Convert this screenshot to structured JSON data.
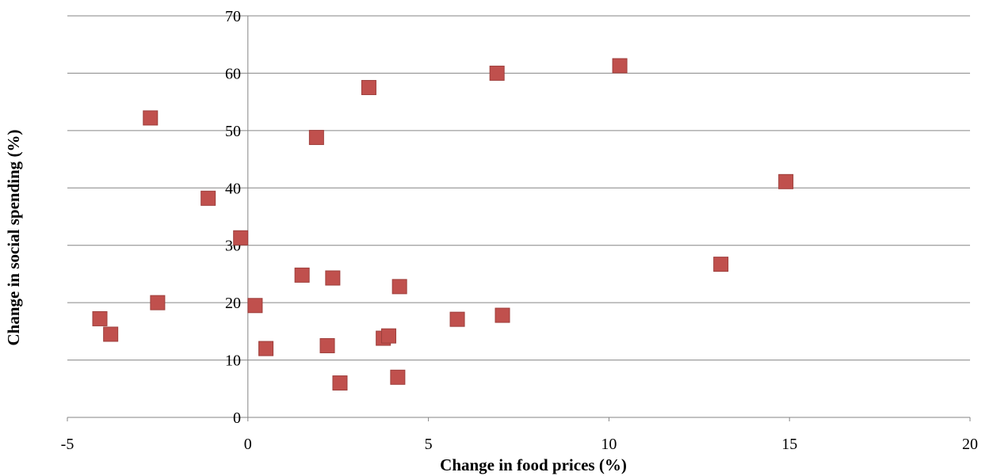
{
  "colors": {
    "marker": "#C0504D",
    "marker_edge": "#9E3F3C",
    "grid": "#868686",
    "axis": "#868686"
  },
  "chart_data": {
    "type": "scatter",
    "title": "",
    "xlabel": "Change in food prices (%)",
    "ylabel": "Change in social spending (%)",
    "xlim": [
      -5,
      20
    ],
    "ylim": [
      0,
      70
    ],
    "xticks": [
      -5,
      0,
      5,
      10,
      15,
      20
    ],
    "yticks": [
      0,
      10,
      20,
      30,
      40,
      50,
      60,
      70
    ],
    "grid": "horizontal",
    "legend": "none",
    "marker": "square",
    "series": [
      {
        "points": [
          [
            -4.1,
            17.2
          ],
          [
            -3.8,
            14.5
          ],
          [
            -2.7,
            52.2
          ],
          [
            -2.5,
            20.0
          ],
          [
            -1.1,
            38.2
          ],
          [
            -0.2,
            31.3
          ],
          [
            0.2,
            19.5
          ],
          [
            0.5,
            12.0
          ],
          [
            1.5,
            24.8
          ],
          [
            1.9,
            48.8
          ],
          [
            2.2,
            12.5
          ],
          [
            2.35,
            24.3
          ],
          [
            2.55,
            6.0
          ],
          [
            3.35,
            57.5
          ],
          [
            3.75,
            13.8
          ],
          [
            3.9,
            14.2
          ],
          [
            4.15,
            7.0
          ],
          [
            4.2,
            22.8
          ],
          [
            5.8,
            17.1
          ],
          [
            6.9,
            60.0
          ],
          [
            7.05,
            17.8
          ],
          [
            10.3,
            61.3
          ],
          [
            13.1,
            26.7
          ],
          [
            14.9,
            41.1
          ]
        ]
      }
    ]
  }
}
